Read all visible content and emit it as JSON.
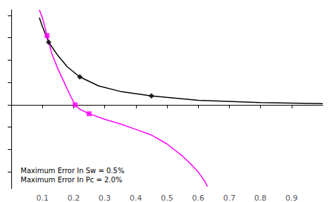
{
  "chart_data": {
    "type": "line",
    "xlim": [
      0.0,
      1.0
    ],
    "ylim": [
      -0.75,
      0.85
    ],
    "xticks": [
      0.1,
      0.2,
      0.3,
      0.4,
      0.5,
      0.6,
      0.7,
      0.8,
      0.9
    ],
    "yticks": [
      -0.6,
      -0.4,
      -0.2,
      0,
      0.2,
      0.4,
      0.6,
      0.8
    ],
    "tick_labels": "x",
    "grid": false,
    "series": [
      {
        "type": "line",
        "color": "#000000",
        "marker": "none",
        "x": [
          0.09,
          0.1,
          0.12,
          0.15,
          0.18,
          0.22,
          0.28,
          0.35,
          0.45,
          0.6,
          0.8,
          1.0
        ],
        "values": [
          0.78,
          0.7,
          0.56,
          0.44,
          0.34,
          0.25,
          0.17,
          0.12,
          0.08,
          0.04,
          0.02,
          0.01
        ]
      },
      {
        "type": "scatter",
        "color": "#000000",
        "marker": "diamond",
        "x": [
          0.12,
          0.22,
          0.45
        ],
        "values": [
          0.56,
          0.25,
          0.08
        ]
      },
      {
        "type": "line",
        "color": "#FF00FF",
        "marker": "none",
        "x": [
          0.09,
          0.1,
          0.115,
          0.13,
          0.15,
          0.17,
          0.19,
          0.205,
          0.22,
          0.25,
          0.3,
          0.35,
          0.4,
          0.45,
          0.5,
          0.55,
          0.58,
          0.6,
          0.62,
          0.63
        ],
        "values": [
          0.85,
          0.78,
          0.62,
          0.46,
          0.32,
          0.2,
          0.08,
          0.0,
          -0.04,
          -0.08,
          -0.13,
          -0.17,
          -0.22,
          -0.27,
          -0.35,
          -0.46,
          -0.54,
          -0.6,
          -0.68,
          -0.73
        ]
      },
      {
        "type": "scatter",
        "color": "#FF00FF",
        "marker": "square",
        "x": [
          0.115,
          0.205,
          0.25
        ],
        "values": [
          0.62,
          0.0,
          -0.08
        ]
      }
    ],
    "annotations": [
      {
        "text": "Maximum Error In Sw = 0.5%\nMaximum Error In Pc = 2.0%",
        "x": 0.03,
        "y": -0.55
      }
    ]
  }
}
